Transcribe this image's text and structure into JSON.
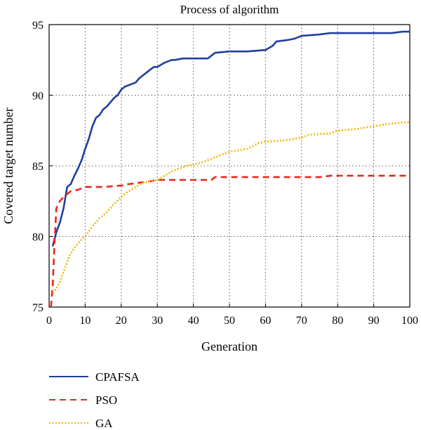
{
  "chart_data": {
    "type": "line",
    "title": "Process of algorithm",
    "xlabel": "Generation",
    "ylabel": "Covered target number",
    "xlim": [
      0,
      100
    ],
    "ylim": [
      75,
      95
    ],
    "xticks": [
      0,
      10,
      20,
      30,
      40,
      50,
      60,
      70,
      80,
      90,
      100
    ],
    "yticks": [
      75,
      80,
      85,
      90,
      95
    ],
    "grid": true,
    "legend_position": "bottom-left, below plot",
    "series": [
      {
        "name": "CPAFSA",
        "color": "#1f3fa0",
        "style": "solid",
        "x": [
          1,
          2,
          3,
          4,
          5,
          6,
          7,
          8,
          9,
          10,
          11,
          12,
          13,
          14,
          15,
          16,
          17,
          18,
          19,
          20,
          21,
          22,
          23,
          24,
          25,
          26,
          27,
          28,
          29,
          30,
          32,
          33,
          34,
          35,
          37,
          40,
          44,
          46,
          50,
          55,
          60,
          62,
          63,
          66,
          68,
          70,
          75,
          78,
          80,
          85,
          90,
          95,
          98,
          100
        ],
        "y": [
          79.3,
          80.3,
          81.0,
          82.0,
          83.5,
          83.7,
          84.3,
          84.8,
          85.4,
          86.2,
          86.9,
          87.8,
          88.4,
          88.6,
          89.0,
          89.2,
          89.5,
          89.8,
          90.0,
          90.4,
          90.6,
          90.7,
          90.8,
          90.9,
          91.2,
          91.4,
          91.6,
          91.8,
          92.0,
          92.0,
          92.3,
          92.4,
          92.5,
          92.5,
          92.6,
          92.6,
          92.6,
          93.0,
          93.1,
          93.1,
          93.2,
          93.5,
          93.8,
          93.9,
          94.0,
          94.2,
          94.3,
          94.4,
          94.4,
          94.4,
          94.4,
          94.4,
          94.5,
          94.5
        ]
      },
      {
        "name": "PSO",
        "color": "#e8281e",
        "style": "dashed",
        "x": [
          0.5,
          1,
          1.5,
          2,
          3,
          4,
          5,
          6,
          8,
          10,
          12,
          15,
          20,
          22,
          25,
          28,
          30,
          35,
          40,
          45,
          46,
          50,
          55,
          60,
          70,
          75,
          78,
          80,
          85,
          90,
          100
        ],
        "y": [
          75.0,
          76.5,
          79.5,
          82.0,
          82.5,
          82.8,
          83.0,
          83.2,
          83.3,
          83.5,
          83.5,
          83.5,
          83.6,
          83.7,
          83.8,
          83.9,
          84.0,
          84.0,
          84.0,
          84.0,
          84.2,
          84.2,
          84.2,
          84.2,
          84.2,
          84.2,
          84.3,
          84.3,
          84.3,
          84.3,
          84.3
        ]
      },
      {
        "name": "GA",
        "color": "#f5b400",
        "style": "dotted",
        "x": [
          1,
          2,
          3,
          4,
          5,
          6,
          7,
          8,
          9,
          10,
          12,
          14,
          16,
          18,
          20,
          22,
          24,
          26,
          28,
          30,
          32,
          34,
          36,
          38,
          40,
          42,
          45,
          48,
          50,
          55,
          58,
          60,
          65,
          70,
          72,
          78,
          80,
          85,
          90,
          95,
          100
        ],
        "y": [
          76.0,
          76.3,
          76.8,
          77.5,
          78.2,
          78.8,
          79.2,
          79.5,
          79.8,
          80.0,
          80.7,
          81.3,
          81.7,
          82.3,
          82.8,
          83.2,
          83.5,
          83.8,
          83.9,
          84.0,
          84.3,
          84.6,
          84.8,
          85.0,
          85.1,
          85.2,
          85.5,
          85.8,
          86.0,
          86.2,
          86.6,
          86.7,
          86.8,
          87.0,
          87.2,
          87.3,
          87.5,
          87.6,
          87.8,
          88.0,
          88.1
        ]
      }
    ]
  }
}
